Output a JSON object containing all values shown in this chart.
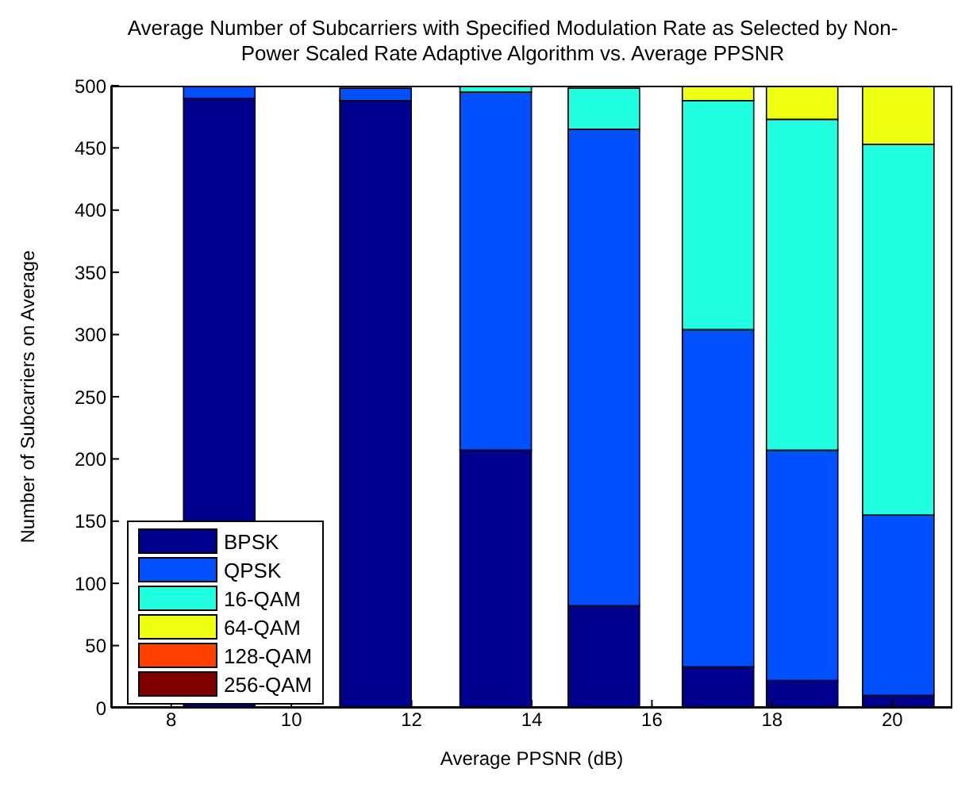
{
  "chart_data": {
    "type": "bar",
    "stacked": true,
    "title": "Average Number of Subcarriers with Specified Modulation Rate as Selected by Non-Power Scaled Rate Adaptive Algorithm vs. Average PPSNR",
    "xlabel": "Average PPSNR (dB)",
    "ylabel": "Number of Subcarriers on Average",
    "x": [
      8.8,
      11.4,
      13.4,
      15.2,
      17.1,
      18.5,
      20.1
    ],
    "xlim": [
      7,
      21
    ],
    "xticks": [
      8,
      10,
      12,
      14,
      16,
      18,
      20
    ],
    "ylim": [
      0,
      500
    ],
    "yticks": [
      0,
      50,
      100,
      150,
      200,
      250,
      300,
      350,
      400,
      450,
      500
    ],
    "grid": false,
    "legend": "bottom left",
    "series": [
      {
        "name": "BPSK",
        "color": "#00008f",
        "values": [
          490,
          488,
          207,
          82,
          33,
          22,
          10
        ]
      },
      {
        "name": "QPSK",
        "color": "#0050ff",
        "values": [
          10,
          10,
          288,
          383,
          271,
          185,
          145
        ]
      },
      {
        "name": "16-QAM",
        "color": "#20ffdf",
        "values": [
          0,
          null,
          5,
          33,
          184,
          266,
          298
        ]
      },
      {
        "name": "64-QAM",
        "color": "#efff10",
        "values": [
          0,
          0,
          0,
          null,
          12,
          27,
          47
        ]
      },
      {
        "name": "128-QAM",
        "color": "#ff4000",
        "values": [
          0,
          0,
          0,
          0,
          0,
          0,
          0
        ]
      },
      {
        "name": "256-QAM",
        "color": "#800000",
        "values": [
          0,
          0,
          0,
          0,
          0,
          0,
          0
        ]
      }
    ]
  }
}
